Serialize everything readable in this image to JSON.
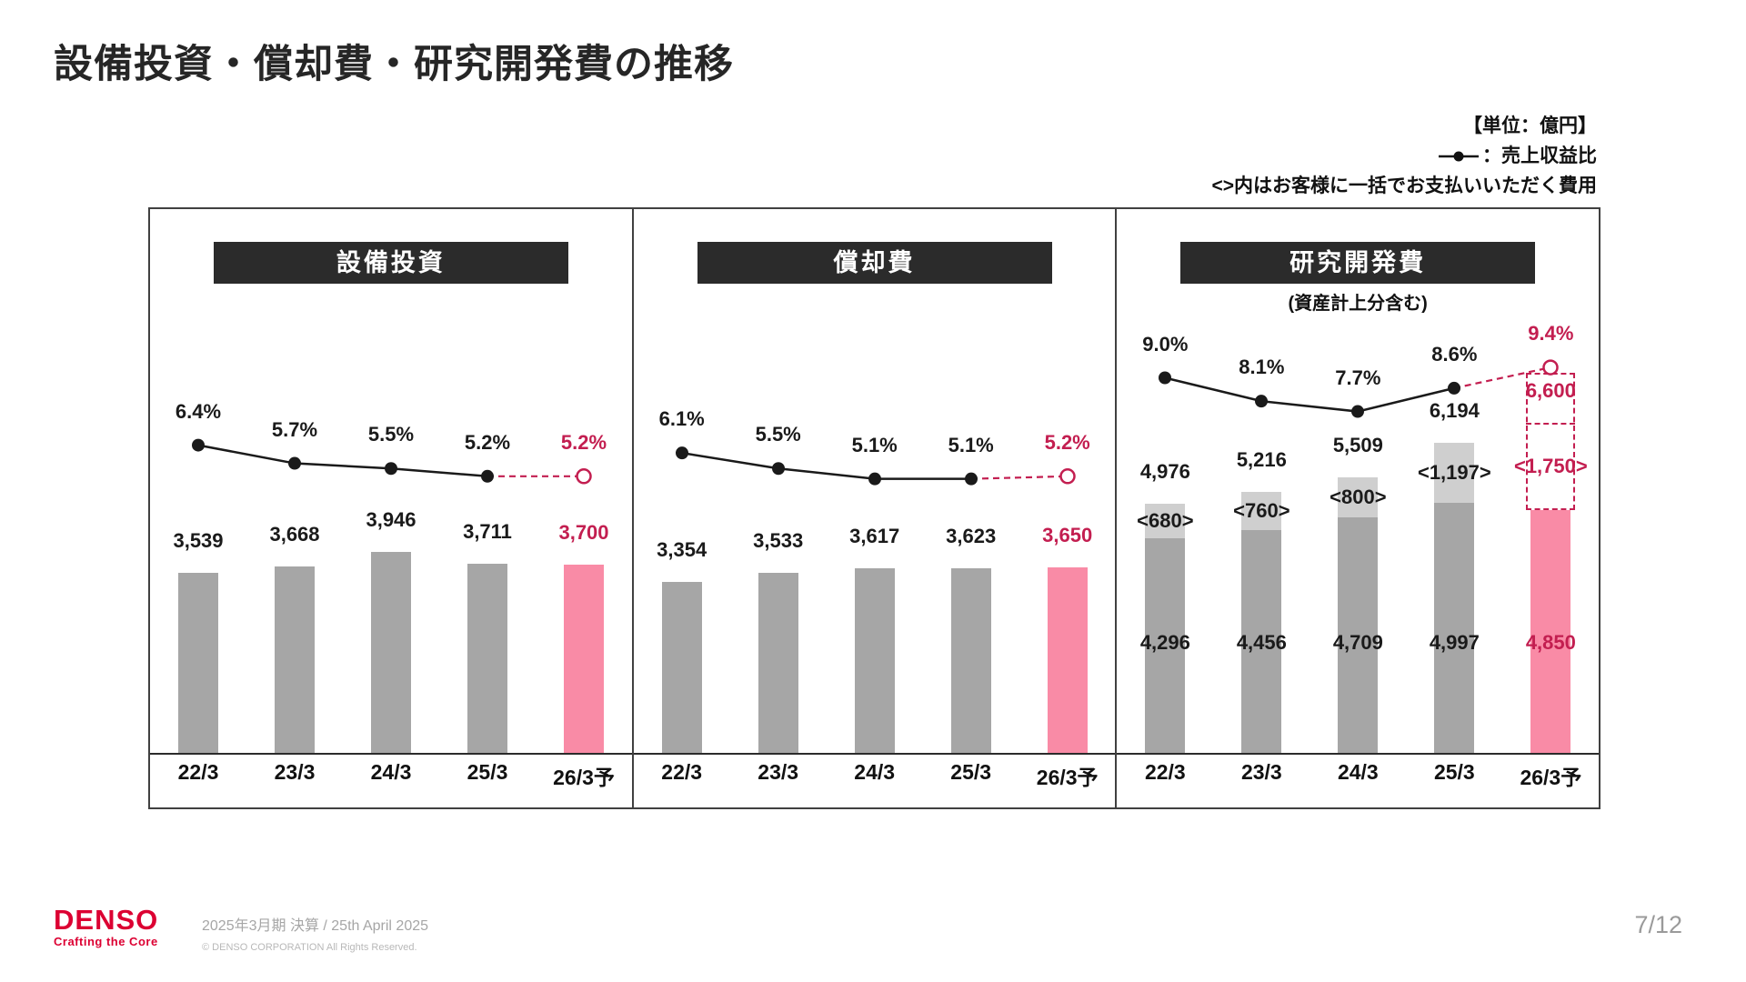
{
  "title": "設備投資・償却費・研究開発費の推移",
  "legend": {
    "unit": "【単位：億円】",
    "ratio_label": "：売上収益比",
    "note": "<>内はお客様に一括でお支払いいただく費用"
  },
  "colors": {
    "bar_gray": "#a6a6a6",
    "bar_light_gray": "#cfcfcf",
    "bar_pink": "#f98ba6",
    "forecast_crimson": "#c31e50",
    "line_black": "#1a1a1a",
    "header_bg": "#2b2b2b",
    "brand_red": "#dc0032"
  },
  "chart_data": [
    {
      "type": "bar",
      "title": "設備投資",
      "unit": "億円",
      "categories": [
        "22/3",
        "23/3",
        "24/3",
        "25/3",
        "26/3予"
      ],
      "values": [
        3539,
        3668,
        3946,
        3711,
        3700
      ],
      "value_labels": [
        "3,539",
        "3,668",
        "3,946",
        "3,711",
        "3,700"
      ],
      "forecast_index": 4,
      "ratio_series": {
        "name": "売上収益比",
        "values_percent": [
          6.4,
          5.7,
          5.5,
          5.2,
          5.2
        ],
        "labels": [
          "6.4%",
          "5.7%",
          "5.5%",
          "5.2%",
          "5.2%"
        ]
      }
    },
    {
      "type": "bar",
      "title": "償却費",
      "unit": "億円",
      "categories": [
        "22/3",
        "23/3",
        "24/3",
        "25/3",
        "26/3予"
      ],
      "values": [
        3354,
        3533,
        3617,
        3623,
        3650
      ],
      "value_labels": [
        "3,354",
        "3,533",
        "3,617",
        "3,623",
        "3,650"
      ],
      "forecast_index": 4,
      "ratio_series": {
        "name": "売上収益比",
        "values_percent": [
          6.1,
          5.5,
          5.1,
          5.1,
          5.2
        ],
        "labels": [
          "6.1%",
          "5.5%",
          "5.1%",
          "5.1%",
          "5.2%"
        ]
      }
    },
    {
      "type": "stacked-bar",
      "title": "研究開発費",
      "subtitle": "(資産計上分含む)",
      "unit": "億円",
      "categories": [
        "22/3",
        "23/3",
        "24/3",
        "25/3",
        "26/3予"
      ],
      "series": [
        {
          "name": "研究開発費",
          "values": [
            4296,
            4456,
            4709,
            4997,
            4850
          ],
          "labels": [
            "4,296",
            "4,456",
            "4,709",
            "4,997",
            "4,850"
          ]
        },
        {
          "name": "お客様に一括でお支払いいただく費用",
          "values": [
            680,
            760,
            800,
            1197,
            1750
          ],
          "labels": [
            "<680>",
            "<760>",
            "<800>",
            "<1,197>",
            "<1,750>"
          ]
        }
      ],
      "totals": [
        4976,
        5216,
        5509,
        6194,
        6600
      ],
      "total_labels": [
        "4,976",
        "5,216",
        "5,509",
        "6,194",
        "6,600"
      ],
      "forecast_index": 4,
      "ratio_series": {
        "name": "売上収益比",
        "values_percent": [
          9.0,
          8.1,
          7.7,
          8.6,
          9.4
        ],
        "labels": [
          "9.0%",
          "8.1%",
          "7.7%",
          "8.6%",
          "9.4%"
        ]
      }
    }
  ],
  "footer": {
    "logo": "DENSO",
    "logo_sub": "Crafting the Core",
    "date_line": "2025年3月期 決算 / 25th April 2025",
    "copyright": "© DENSO CORPORATION All Rights Reserved.",
    "page": "7/12"
  }
}
